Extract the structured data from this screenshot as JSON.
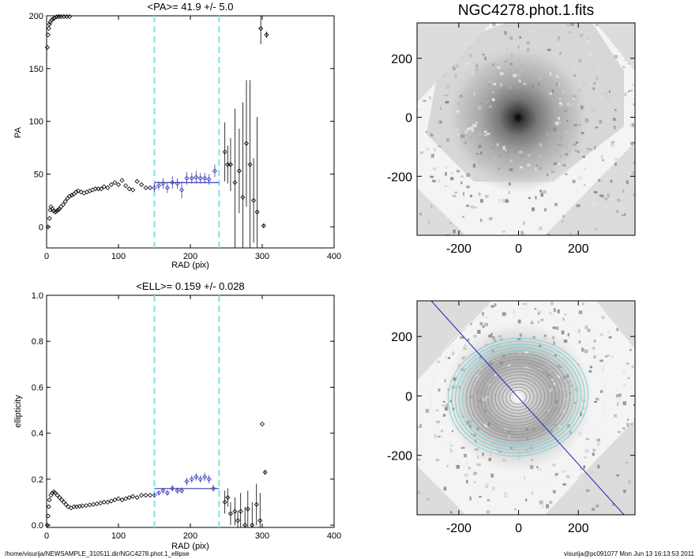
{
  "image_title": "NGC4278.phot.1.fits",
  "footer": {
    "left": "/home/visurija/NEWSAMPLE_310511.dir/NGC4278.phot.1_ellipse",
    "right": "visurija@pc091077  Mon Jun 13 16:13:53 2011"
  },
  "colors": {
    "fit": "#3a3ab5",
    "marker": "#000000",
    "marker_fit": "#3a3ab5",
    "range_line": "#7fe3e3",
    "image_bg": "#dcdcdc",
    "contours": "#80d0d0",
    "major_axis": "#2020c0"
  },
  "chart_data": [
    {
      "type": "scatter",
      "title": "<PA>=  41.9 +/-   5.0",
      "xlabel": "RAD (pix)",
      "ylabel": "PA",
      "xlim": [
        0,
        400
      ],
      "ylim": [
        -20,
        200
      ],
      "xticks": [
        0,
        100,
        200,
        300,
        400
      ],
      "yticks": [
        0,
        50,
        100,
        150,
        200
      ],
      "grid": false,
      "range_lines_x": [
        150,
        240
      ],
      "fit_line": {
        "x": [
          150,
          240
        ],
        "y": 41.9
      },
      "points": [
        {
          "x": 2,
          "y": 0
        },
        {
          "x": 4,
          "y": 8
        },
        {
          "x": 5,
          "y": 16
        },
        {
          "x": 6,
          "y": 19
        },
        {
          "x": 8,
          "y": 17
        },
        {
          "x": 10,
          "y": 15
        },
        {
          "x": 12,
          "y": 14
        },
        {
          "x": 14,
          "y": 15
        },
        {
          "x": 16,
          "y": 16
        },
        {
          "x": 18,
          "y": 17
        },
        {
          "x": 20,
          "y": 19
        },
        {
          "x": 23,
          "y": 21
        },
        {
          "x": 26,
          "y": 24
        },
        {
          "x": 29,
          "y": 27
        },
        {
          "x": 32,
          "y": 29
        },
        {
          "x": 35,
          "y": 30
        },
        {
          "x": 38,
          "y": 31
        },
        {
          "x": 41,
          "y": 33
        },
        {
          "x": 44,
          "y": 34
        },
        {
          "x": 48,
          "y": 33
        },
        {
          "x": 52,
          "y": 32
        },
        {
          "x": 56,
          "y": 33
        },
        {
          "x": 60,
          "y": 34
        },
        {
          "x": 64,
          "y": 35
        },
        {
          "x": 68,
          "y": 36
        },
        {
          "x": 72,
          "y": 36
        },
        {
          "x": 76,
          "y": 36
        },
        {
          "x": 80,
          "y": 38
        },
        {
          "x": 85,
          "y": 37
        },
        {
          "x": 90,
          "y": 40
        },
        {
          "x": 95,
          "y": 42
        },
        {
          "x": 100,
          "y": 40
        },
        {
          "x": 105,
          "y": 44
        },
        {
          "x": 110,
          "y": 39
        },
        {
          "x": 115,
          "y": 36
        },
        {
          "x": 120,
          "y": 35
        },
        {
          "x": 126,
          "y": 43
        },
        {
          "x": 132,
          "y": 40
        },
        {
          "x": 138,
          "y": 37
        },
        {
          "x": 144,
          "y": 37
        },
        {
          "x": 150,
          "y": 37,
          "e": 4,
          "fit": true
        },
        {
          "x": 156,
          "y": 39,
          "e": 4,
          "fit": true
        },
        {
          "x": 162,
          "y": 41,
          "e": 5,
          "fit": true
        },
        {
          "x": 168,
          "y": 37,
          "e": 5,
          "fit": true
        },
        {
          "x": 175,
          "y": 42,
          "e": 6,
          "fit": true
        },
        {
          "x": 182,
          "y": 41,
          "e": 5,
          "fit": true
        },
        {
          "x": 188,
          "y": 35,
          "e": 8,
          "fit": true
        },
        {
          "x": 195,
          "y": 46,
          "e": 6,
          "fit": true
        },
        {
          "x": 202,
          "y": 46,
          "e": 5,
          "fit": true
        },
        {
          "x": 208,
          "y": 47,
          "e": 6,
          "fit": true
        },
        {
          "x": 214,
          "y": 46,
          "e": 5,
          "fit": true
        },
        {
          "x": 220,
          "y": 46,
          "e": 5,
          "fit": true
        },
        {
          "x": 226,
          "y": 45,
          "e": 5,
          "fit": true
        },
        {
          "x": 234,
          "y": 53,
          "e": 6,
          "fit": true
        },
        {
          "x": 248,
          "y": 71,
          "e": 28
        },
        {
          "x": 252,
          "y": 59,
          "e": 18
        },
        {
          "x": 256,
          "y": 59,
          "e": 25
        },
        {
          "x": 262,
          "y": 42,
          "e": 70
        },
        {
          "x": 268,
          "y": 53,
          "e": 40
        },
        {
          "x": 273,
          "y": 28,
          "e": 90
        },
        {
          "x": 278,
          "y": 79,
          "e": 60
        },
        {
          "x": 283,
          "y": 59,
          "e": 80
        },
        {
          "x": 288,
          "y": 25,
          "e": 40
        },
        {
          "x": 293,
          "y": 14,
          "e": 90
        },
        {
          "x": 298,
          "y": 188,
          "e": 15
        },
        {
          "x": 302,
          "y": 1,
          "e": 2
        },
        {
          "x": 306,
          "y": 182,
          "e": 3
        }
      ]
    },
    {
      "type": "scatter",
      "title": "<ELL>= 0.159 +/-  0.028",
      "xlabel": "RAD (pix)",
      "ylabel": "ellipticity",
      "xlim": [
        0,
        400
      ],
      "ylim": [
        -0.01,
        1.0
      ],
      "xticks": [
        0,
        100,
        200,
        300,
        400
      ],
      "yticks": [
        0.0,
        0.2,
        0.4,
        0.6,
        0.8,
        1.0
      ],
      "grid": false,
      "range_lines_x": [
        150,
        240
      ],
      "fit_line": {
        "x": [
          150,
          240
        ],
        "y": 0.159
      },
      "points": [
        {
          "x": 1,
          "y": 0.0
        },
        {
          "x": 2,
          "y": 0.04
        },
        {
          "x": 3,
          "y": 0.08
        },
        {
          "x": 4,
          "y": 0.11
        },
        {
          "x": 6,
          "y": 0.13
        },
        {
          "x": 8,
          "y": 0.14
        },
        {
          "x": 10,
          "y": 0.145
        },
        {
          "x": 12,
          "y": 0.14
        },
        {
          "x": 15,
          "y": 0.13
        },
        {
          "x": 18,
          "y": 0.12
        },
        {
          "x": 21,
          "y": 0.11
        },
        {
          "x": 24,
          "y": 0.1
        },
        {
          "x": 27,
          "y": 0.09
        },
        {
          "x": 30,
          "y": 0.08
        },
        {
          "x": 34,
          "y": 0.075
        },
        {
          "x": 38,
          "y": 0.08
        },
        {
          "x": 42,
          "y": 0.08
        },
        {
          "x": 46,
          "y": 0.082
        },
        {
          "x": 50,
          "y": 0.084
        },
        {
          "x": 55,
          "y": 0.085
        },
        {
          "x": 60,
          "y": 0.088
        },
        {
          "x": 65,
          "y": 0.09
        },
        {
          "x": 70,
          "y": 0.093
        },
        {
          "x": 75,
          "y": 0.096
        },
        {
          "x": 80,
          "y": 0.1
        },
        {
          "x": 85,
          "y": 0.1
        },
        {
          "x": 90,
          "y": 0.105
        },
        {
          "x": 95,
          "y": 0.11
        },
        {
          "x": 100,
          "y": 0.115
        },
        {
          "x": 105,
          "y": 0.11
        },
        {
          "x": 110,
          "y": 0.115
        },
        {
          "x": 115,
          "y": 0.12
        },
        {
          "x": 120,
          "y": 0.125
        },
        {
          "x": 126,
          "y": 0.12
        },
        {
          "x": 132,
          "y": 0.13
        },
        {
          "x": 138,
          "y": 0.13
        },
        {
          "x": 144,
          "y": 0.13
        },
        {
          "x": 150,
          "y": 0.13,
          "e": 0.01,
          "fit": true
        },
        {
          "x": 156,
          "y": 0.14,
          "e": 0.01,
          "fit": true
        },
        {
          "x": 162,
          "y": 0.15,
          "e": 0.012,
          "fit": true
        },
        {
          "x": 168,
          "y": 0.14,
          "e": 0.012,
          "fit": true
        },
        {
          "x": 175,
          "y": 0.16,
          "e": 0.014,
          "fit": true
        },
        {
          "x": 182,
          "y": 0.15,
          "e": 0.014,
          "fit": true
        },
        {
          "x": 188,
          "y": 0.15,
          "e": 0.014,
          "fit": true
        },
        {
          "x": 195,
          "y": 0.19,
          "e": 0.016,
          "fit": true
        },
        {
          "x": 202,
          "y": 0.2,
          "e": 0.016,
          "fit": true
        },
        {
          "x": 208,
          "y": 0.21,
          "e": 0.016,
          "fit": true
        },
        {
          "x": 214,
          "y": 0.2,
          "e": 0.016,
          "fit": true
        },
        {
          "x": 220,
          "y": 0.21,
          "e": 0.018,
          "fit": true
        },
        {
          "x": 226,
          "y": 0.2,
          "e": 0.018,
          "fit": true
        },
        {
          "x": 232,
          "y": 0.16,
          "e": 0.016,
          "fit": true
        },
        {
          "x": 248,
          "y": 0.1,
          "e": 0.05
        },
        {
          "x": 252,
          "y": 0.12,
          "e": 0.04
        },
        {
          "x": 256,
          "y": 0.05,
          "e": 0.05
        },
        {
          "x": 262,
          "y": 0.06,
          "e": 0.06
        },
        {
          "x": 266,
          "y": 0.02,
          "e": 0.04
        },
        {
          "x": 270,
          "y": 0.06,
          "e": 0.08
        },
        {
          "x": 276,
          "y": 0.0,
          "e": 0.08
        },
        {
          "x": 280,
          "y": 0.07,
          "e": 0.08
        },
        {
          "x": 286,
          "y": 0.0,
          "e": 0.1
        },
        {
          "x": 292,
          "y": 0.09,
          "e": 0.09
        },
        {
          "x": 297,
          "y": 0.02,
          "e": 0.12
        },
        {
          "x": 300,
          "y": 0.44,
          "e": 0.0
        },
        {
          "x": 304,
          "y": 0.23,
          "e": 0.01
        }
      ]
    },
    {
      "type": "heatmap",
      "title": "NGC4278.phot.1.fits",
      "xlim": [
        -340,
        390
      ],
      "ylim": [
        -400,
        320
      ],
      "xticks": [
        -200,
        0,
        200
      ],
      "yticks": [
        -200,
        0,
        200
      ],
      "grid": false
    },
    {
      "type": "heatmap",
      "title": "",
      "xlim": [
        -340,
        390
      ],
      "ylim": [
        -400,
        320
      ],
      "xticks": [
        -200,
        0,
        200
      ],
      "yticks": [
        -200,
        0,
        200
      ],
      "grid": false,
      "contours": true,
      "major_axis_pa_deg": 41.9
    }
  ]
}
